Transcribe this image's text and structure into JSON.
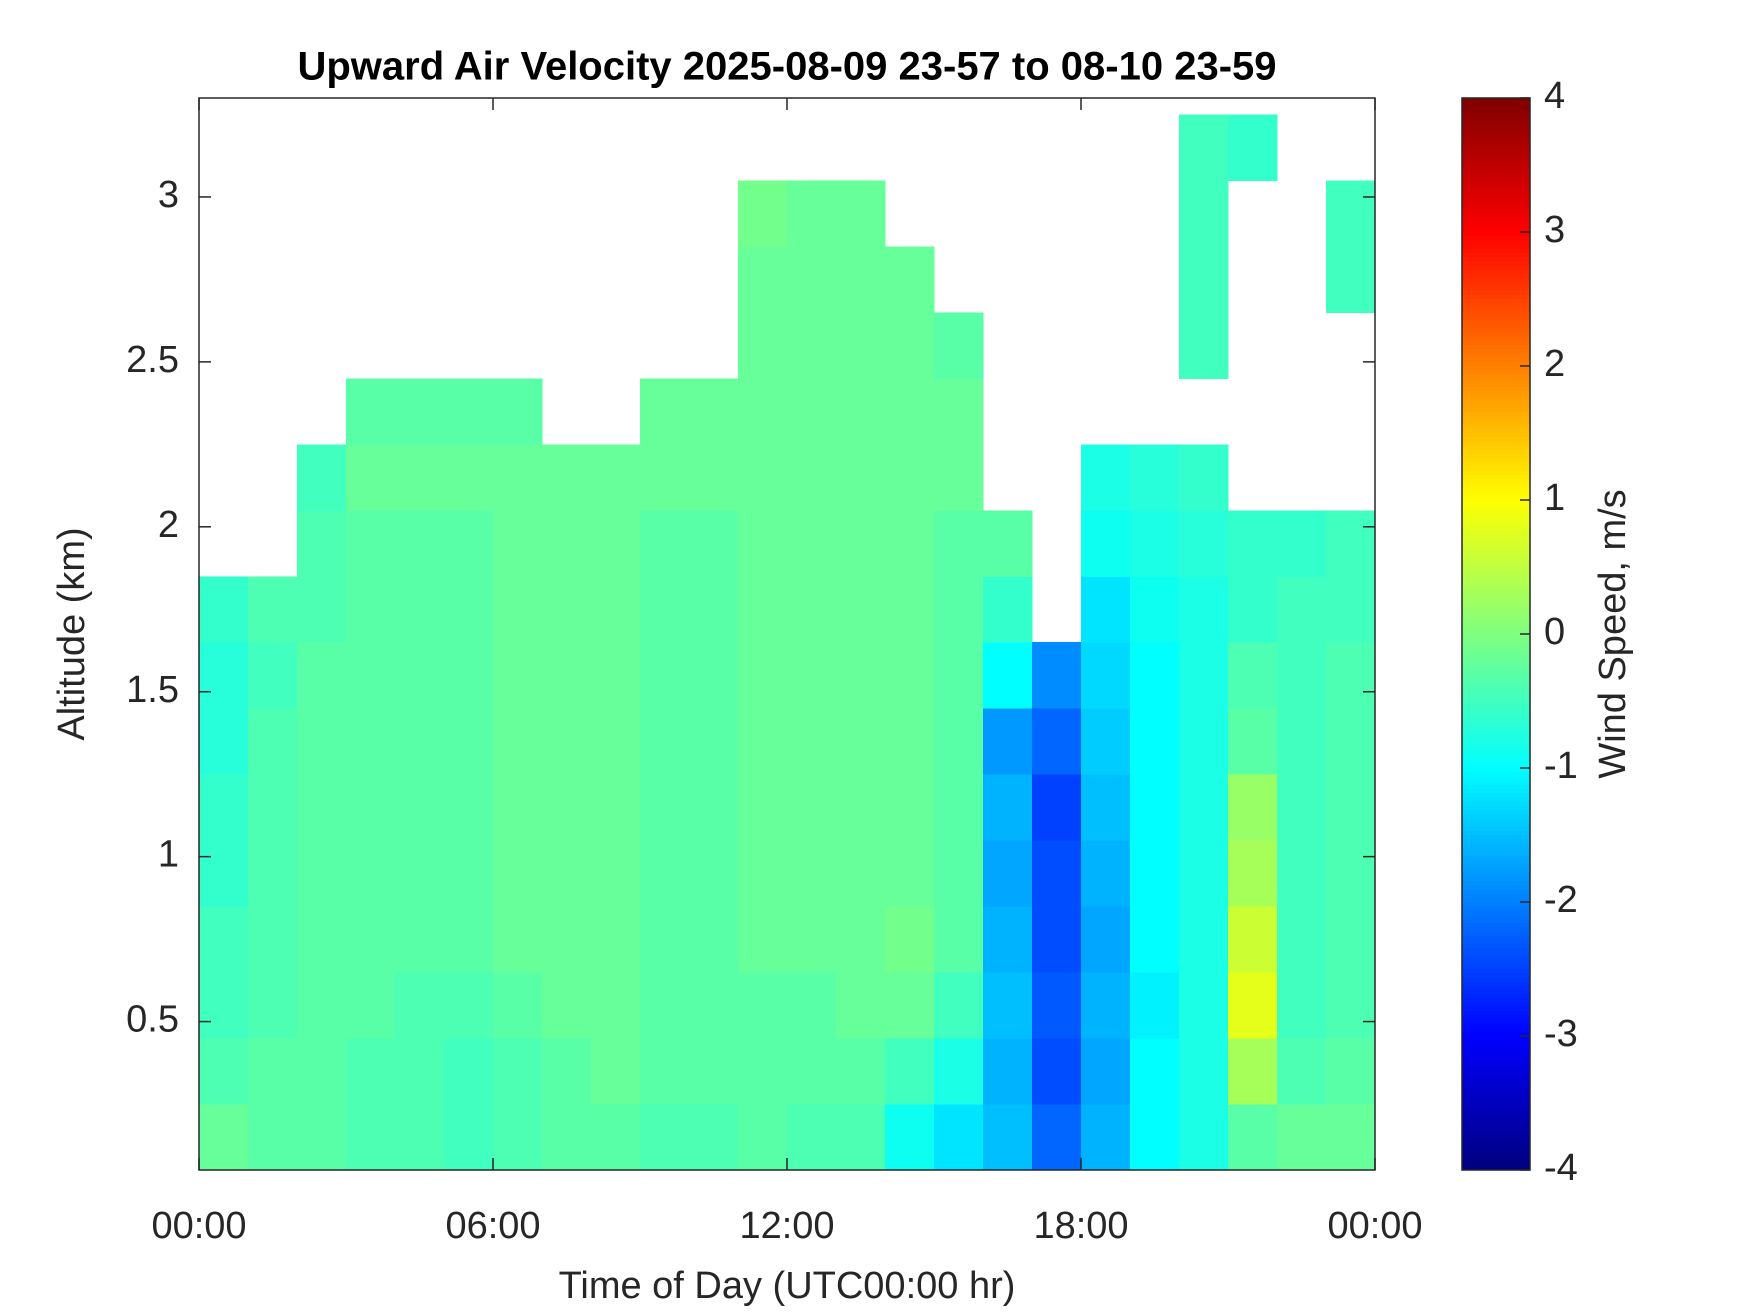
{
  "chart_data": {
    "type": "heatmap",
    "title": "Upward Air Velocity 2025-08-09 23-57 to 08-10 23-59",
    "x_label": "Time of Day (UTC00:00 hr)",
    "y_label": "Altitude (km)",
    "colorbar_label": "Wind Speed, m/s",
    "colormap": "jet",
    "xlim": [
      0,
      24
    ],
    "xticks": [
      {
        "value": 0,
        "label": "00:00"
      },
      {
        "value": 6,
        "label": "06:00"
      },
      {
        "value": 12,
        "label": "12:00"
      },
      {
        "value": 18,
        "label": "18:00"
      },
      {
        "value": 24,
        "label": "00:00"
      }
    ],
    "ylim": [
      0.05,
      3.3
    ],
    "yticks": [
      0.5,
      1,
      1.5,
      2,
      2.5,
      3
    ],
    "zlim": [
      -4,
      4
    ],
    "zticks": [
      -4,
      -3,
      -2,
      -1,
      0,
      1,
      2,
      3,
      4
    ],
    "x_edges": [
      0,
      1,
      2,
      3,
      4,
      5,
      6,
      7,
      8,
      9,
      10,
      11,
      12,
      13,
      14,
      15,
      16,
      17,
      18,
      19,
      20,
      21,
      22,
      23,
      24
    ],
    "y_edges": [
      0.05,
      0.25,
      0.45,
      0.65,
      0.85,
      1.05,
      1.25,
      1.45,
      1.65,
      1.85,
      2.05,
      2.25,
      2.45,
      2.65,
      2.85,
      3.05,
      3.25
    ],
    "values": [
      [
        -0.2,
        -0.3,
        -0.3,
        -0.4,
        -0.4,
        -0.5,
        -0.4,
        -0.3,
        -0.3,
        -0.4,
        -0.4,
        -0.3,
        -0.4,
        -0.4,
        -0.9,
        -1.2,
        -1.5,
        -2.2,
        -1.6,
        -1.0,
        -0.8,
        -0.3,
        -0.2,
        -0.2
      ],
      [
        -0.4,
        -0.3,
        -0.3,
        -0.4,
        -0.4,
        -0.5,
        -0.4,
        -0.3,
        -0.2,
        -0.3,
        -0.3,
        -0.3,
        -0.3,
        -0.3,
        -0.5,
        -0.8,
        -1.6,
        -2.4,
        -1.7,
        -1.0,
        -0.8,
        0.3,
        -0.4,
        -0.3
      ],
      [
        -0.5,
        -0.4,
        -0.3,
        -0.3,
        -0.4,
        -0.4,
        -0.3,
        -0.2,
        -0.2,
        -0.3,
        -0.3,
        -0.3,
        -0.3,
        -0.2,
        -0.2,
        -0.5,
        -1.5,
        -2.3,
        -1.6,
        -1.1,
        -0.8,
        0.8,
        -0.5,
        -0.4
      ],
      [
        -0.5,
        -0.4,
        -0.3,
        -0.3,
        -0.3,
        -0.3,
        -0.2,
        -0.2,
        -0.2,
        -0.3,
        -0.3,
        -0.2,
        -0.2,
        -0.2,
        -0.1,
        -0.3,
        -1.6,
        -2.4,
        -1.7,
        -1.0,
        -0.8,
        0.6,
        -0.5,
        -0.4
      ],
      [
        -0.6,
        -0.4,
        -0.3,
        -0.3,
        -0.3,
        -0.3,
        -0.2,
        -0.2,
        -0.2,
        -0.3,
        -0.3,
        -0.2,
        -0.2,
        -0.2,
        -0.2,
        -0.3,
        -1.7,
        -2.4,
        -1.6,
        -1.0,
        -0.8,
        0.3,
        -0.5,
        -0.4
      ],
      [
        -0.6,
        -0.4,
        -0.3,
        -0.3,
        -0.3,
        -0.3,
        -0.2,
        -0.2,
        -0.2,
        -0.3,
        -0.3,
        -0.2,
        -0.2,
        -0.2,
        -0.2,
        -0.3,
        -1.6,
        -2.5,
        -1.5,
        -1.0,
        -0.8,
        0.2,
        -0.5,
        -0.4
      ],
      [
        -0.7,
        -0.4,
        -0.3,
        -0.3,
        -0.3,
        -0.3,
        -0.2,
        -0.2,
        -0.2,
        -0.3,
        -0.3,
        -0.2,
        -0.2,
        -0.2,
        -0.2,
        -0.3,
        -1.8,
        -2.2,
        -1.4,
        -1.0,
        -0.8,
        -0.3,
        -0.5,
        -0.4
      ],
      [
        -0.7,
        -0.5,
        -0.3,
        -0.3,
        -0.3,
        -0.3,
        -0.2,
        -0.2,
        -0.2,
        -0.3,
        -0.3,
        -0.2,
        -0.2,
        -0.2,
        -0.2,
        -0.3,
        -1.0,
        -1.9,
        -1.3,
        -1.0,
        -0.8,
        -0.4,
        -0.5,
        -0.4
      ],
      [
        -0.6,
        -0.4,
        -0.4,
        -0.3,
        -0.3,
        -0.3,
        -0.2,
        -0.2,
        -0.2,
        -0.3,
        -0.3,
        -0.2,
        -0.2,
        -0.2,
        -0.2,
        -0.3,
        -0.6,
        null,
        -1.2,
        -0.9,
        -0.8,
        -0.6,
        -0.5,
        -0.5
      ],
      [
        null,
        null,
        -0.4,
        -0.3,
        -0.3,
        -0.3,
        -0.2,
        -0.2,
        -0.2,
        -0.3,
        -0.3,
        -0.2,
        -0.2,
        -0.2,
        -0.2,
        -0.3,
        -0.3,
        null,
        -0.9,
        -0.8,
        -0.7,
        -0.6,
        -0.6,
        -0.5
      ],
      [
        null,
        null,
        -0.5,
        -0.2,
        -0.2,
        -0.2,
        -0.2,
        -0.2,
        -0.2,
        -0.2,
        -0.2,
        -0.2,
        -0.2,
        -0.2,
        -0.2,
        -0.2,
        null,
        null,
        -0.8,
        -0.7,
        -0.6,
        null,
        null,
        null
      ],
      [
        null,
        null,
        null,
        -0.3,
        -0.3,
        -0.3,
        -0.3,
        null,
        null,
        -0.2,
        -0.2,
        -0.2,
        -0.2,
        -0.2,
        -0.2,
        -0.2,
        null,
        null,
        null,
        null,
        null,
        null,
        null,
        null
      ],
      [
        null,
        null,
        null,
        null,
        null,
        null,
        null,
        null,
        null,
        null,
        null,
        -0.2,
        -0.2,
        -0.2,
        -0.2,
        -0.3,
        null,
        null,
        null,
        null,
        -0.5,
        null,
        null,
        null
      ],
      [
        null,
        null,
        null,
        null,
        null,
        null,
        null,
        null,
        null,
        null,
        null,
        -0.2,
        -0.2,
        -0.2,
        -0.2,
        null,
        null,
        null,
        null,
        null,
        -0.5,
        null,
        null,
        -0.5
      ],
      [
        null,
        null,
        null,
        null,
        null,
        null,
        null,
        null,
        null,
        null,
        null,
        -0.1,
        -0.2,
        -0.2,
        null,
        null,
        null,
        null,
        null,
        null,
        -0.5,
        null,
        null,
        -0.5
      ],
      [
        null,
        null,
        null,
        null,
        null,
        null,
        null,
        null,
        null,
        null,
        null,
        null,
        null,
        null,
        null,
        null,
        null,
        null,
        null,
        null,
        -0.5,
        -0.6,
        null,
        null
      ]
    ]
  }
}
